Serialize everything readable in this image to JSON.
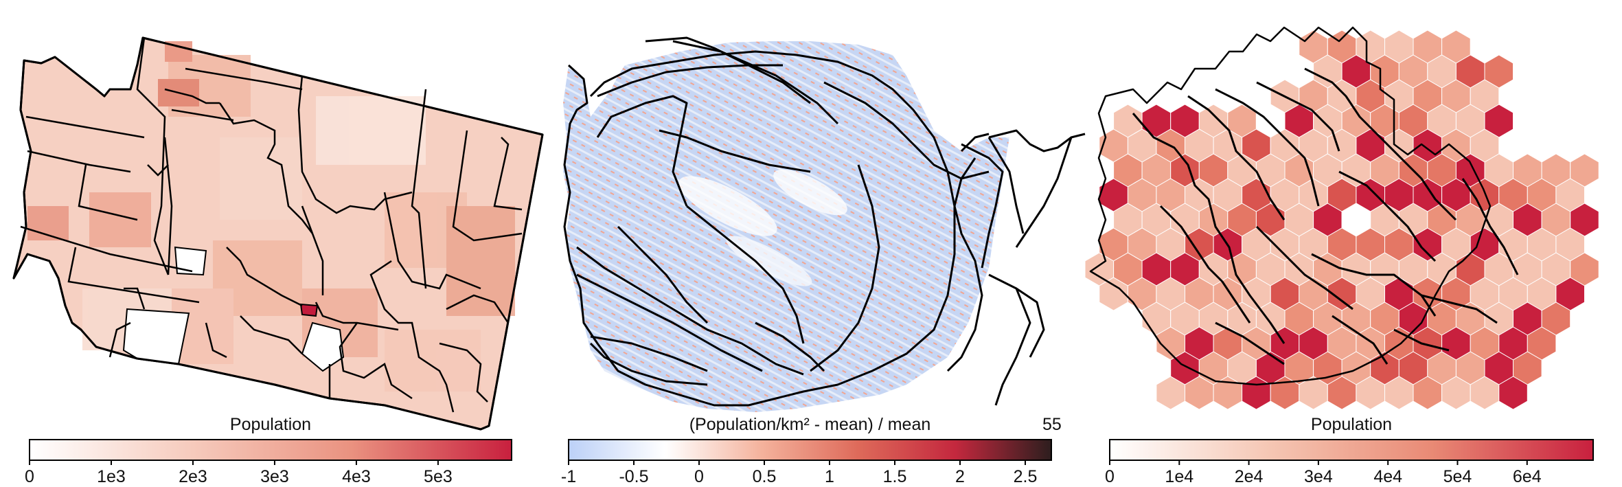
{
  "panels": [
    {
      "colorbar": {
        "title": "Population",
        "ticks": [
          "0",
          "1e3",
          "2e3",
          "3e3",
          "4e3",
          "5e3"
        ],
        "tick_values": [
          0,
          1000,
          2000,
          3000,
          4000,
          5000
        ],
        "range": [
          0,
          5900
        ],
        "colors": [
          "#ffffff",
          "#f6cbbd",
          "#ea9280",
          "#c8203e"
        ]
      }
    },
    {
      "colorbar": {
        "title": "(Population/km² - mean) / mean",
        "ticks": [
          "-1",
          "-0.5",
          "0",
          "0.5",
          "1",
          "1.5",
          "2",
          "2.5"
        ],
        "tick_values": [
          -1,
          -0.5,
          0,
          0.5,
          1,
          1.5,
          2,
          2.5
        ],
        "range": [
          -1,
          2.7
        ],
        "colors": [
          "#bcd0f7",
          "#ffffff",
          "#f4b29c",
          "#de6a5a",
          "#c4283e",
          "#2d1e1e"
        ],
        "extra_label": "55"
      }
    },
    {
      "colorbar": {
        "title": "Population",
        "ticks": [
          "0",
          "1e4",
          "2e4",
          "3e4",
          "4e4",
          "5e4",
          "6e4"
        ],
        "tick_values": [
          0,
          10000,
          20000,
          30000,
          40000,
          50000,
          60000
        ],
        "range": [
          0,
          69500
        ],
        "colors": [
          "#ffffff",
          "#f5c6b3",
          "#e98a75",
          "#c8203e"
        ]
      }
    }
  ]
}
